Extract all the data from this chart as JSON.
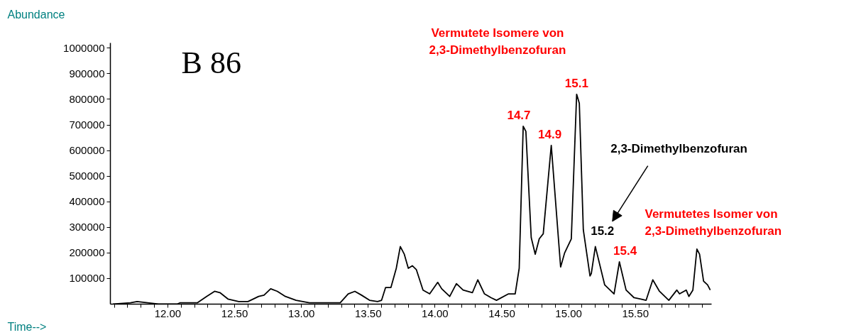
{
  "chart_data": {
    "type": "line",
    "xlabel": "Time-->",
    "ylabel": "Abundance",
    "x": [
      11.59,
      11.72,
      11.77,
      11.85,
      11.93,
      12.07,
      12.09,
      12.22,
      12.29,
      12.35,
      12.39,
      12.45,
      12.53,
      12.6,
      12.68,
      12.72,
      12.77,
      12.82,
      12.88,
      12.96,
      13.06,
      13.29,
      13.35,
      13.4,
      13.45,
      13.51,
      13.57,
      13.6,
      13.63,
      13.67,
      13.71,
      13.74,
      13.77,
      13.8,
      13.83,
      13.86,
      13.91,
      13.96,
      14.02,
      14.05,
      14.11,
      14.16,
      14.21,
      14.28,
      14.32,
      14.37,
      14.42,
      14.46,
      14.55,
      14.59,
      14.6,
      14.63,
      14.66,
      14.68,
      14.72,
      14.75,
      14.78,
      14.81,
      14.87,
      14.94,
      14.97,
      15.02,
      15.06,
      15.08,
      15.11,
      15.16,
      15.17,
      15.2,
      15.27,
      15.34,
      15.38,
      15.43,
      15.49,
      15.54,
      15.58,
      15.63,
      15.68,
      15.75,
      15.81,
      15.83,
      15.88,
      15.9,
      15.93,
      15.96,
      15.98,
      16.01,
      16.04,
      16.06
    ],
    "series": [
      {
        "color": "#000000",
        "values": [
          0,
          5000,
          10000,
          5000,
          0,
          0,
          5000,
          5000,
          30000,
          50000,
          45000,
          20000,
          10000,
          10000,
          30000,
          35000,
          60000,
          50000,
          30000,
          15000,
          5000,
          5000,
          40000,
          50000,
          35000,
          15000,
          10000,
          15000,
          65000,
          65000,
          140000,
          225000,
          195000,
          140000,
          150000,
          135000,
          55000,
          40000,
          85000,
          60000,
          30000,
          80000,
          55000,
          45000,
          95000,
          40000,
          25000,
          15000,
          40000,
          40000,
          40000,
          140000,
          695000,
          675000,
          260000,
          195000,
          255000,
          275000,
          620000,
          145000,
          200000,
          255000,
          820000,
          785000,
          290000,
          110000,
          120000,
          225000,
          75000,
          40000,
          165000,
          55000,
          25000,
          20000,
          15000,
          95000,
          50000,
          15000,
          55000,
          40000,
          55000,
          30000,
          55000,
          215000,
          195000,
          90000,
          75000,
          55000
        ]
      }
    ],
    "xlim": [
      11.57,
      16.07
    ],
    "ylim": [
      0,
      1020000
    ],
    "xticks": [
      {
        "value": 11.6,
        "label": null
      },
      {
        "value": 11.7,
        "label": null
      },
      {
        "value": 11.8,
        "label": null
      },
      {
        "value": 11.9,
        "label": null
      },
      {
        "value": 12.0,
        "label": "12.00"
      },
      {
        "value": 12.1,
        "label": null
      },
      {
        "value": 12.2,
        "label": null
      },
      {
        "value": 12.3,
        "label": null
      },
      {
        "value": 12.4,
        "label": null
      },
      {
        "value": 12.5,
        "label": "12.50"
      },
      {
        "value": 12.6,
        "label": null
      },
      {
        "value": 12.7,
        "label": null
      },
      {
        "value": 12.8,
        "label": null
      },
      {
        "value": 12.9,
        "label": null
      },
      {
        "value": 13.0,
        "label": "13.00"
      },
      {
        "value": 13.1,
        "label": null
      },
      {
        "value": 13.2,
        "label": null
      },
      {
        "value": 13.3,
        "label": null
      },
      {
        "value": 13.4,
        "label": null
      },
      {
        "value": 13.5,
        "label": "13.50"
      },
      {
        "value": 13.6,
        "label": null
      },
      {
        "value": 13.7,
        "label": null
      },
      {
        "value": 13.8,
        "label": null
      },
      {
        "value": 13.9,
        "label": null
      },
      {
        "value": 14.0,
        "label": "14.00"
      },
      {
        "value": 14.1,
        "label": null
      },
      {
        "value": 14.2,
        "label": null
      },
      {
        "value": 14.3,
        "label": null
      },
      {
        "value": 14.4,
        "label": null
      },
      {
        "value": 14.5,
        "label": "14.50"
      },
      {
        "value": 14.6,
        "label": null
      },
      {
        "value": 14.7,
        "label": null
      },
      {
        "value": 14.8,
        "label": null
      },
      {
        "value": 14.9,
        "label": null
      },
      {
        "value": 15.0,
        "label": "15.00"
      },
      {
        "value": 15.1,
        "label": null
      },
      {
        "value": 15.2,
        "label": null
      },
      {
        "value": 15.3,
        "label": null
      },
      {
        "value": 15.4,
        "label": null
      },
      {
        "value": 15.5,
        "label": "15.50"
      },
      {
        "value": 15.6,
        "label": null
      },
      {
        "value": 15.7,
        "label": null
      },
      {
        "value": 15.8,
        "label": null
      },
      {
        "value": 15.9,
        "label": null
      },
      {
        "value": 16.0,
        "label": null
      }
    ],
    "yticks": [
      100000,
      200000,
      300000,
      400000,
      500000,
      600000,
      700000,
      800000,
      900000,
      1000000
    ],
    "grid": false,
    "marker": "none",
    "line_style": "solid",
    "annotations": [
      "B 86",
      "Vermutete Isomere von\n2,3-Dimethylbenzofuran",
      {
        "text": "14.7",
        "x": 14.67,
        "y": 695000
      },
      {
        "text": "14.9",
        "x": 14.87,
        "y": 620000
      },
      {
        "text": "15.1",
        "x": 15.06,
        "y": 820000
      },
      "2,3-Dimethylbenzofuran",
      {
        "text": "15.2",
        "x": 15.2,
        "y": 225000
      },
      {
        "text": "15.4",
        "x": 15.38,
        "y": 165000
      },
      "Vermutetes Isomer von\n2,3-Dimethylbenzofuran"
    ]
  }
}
